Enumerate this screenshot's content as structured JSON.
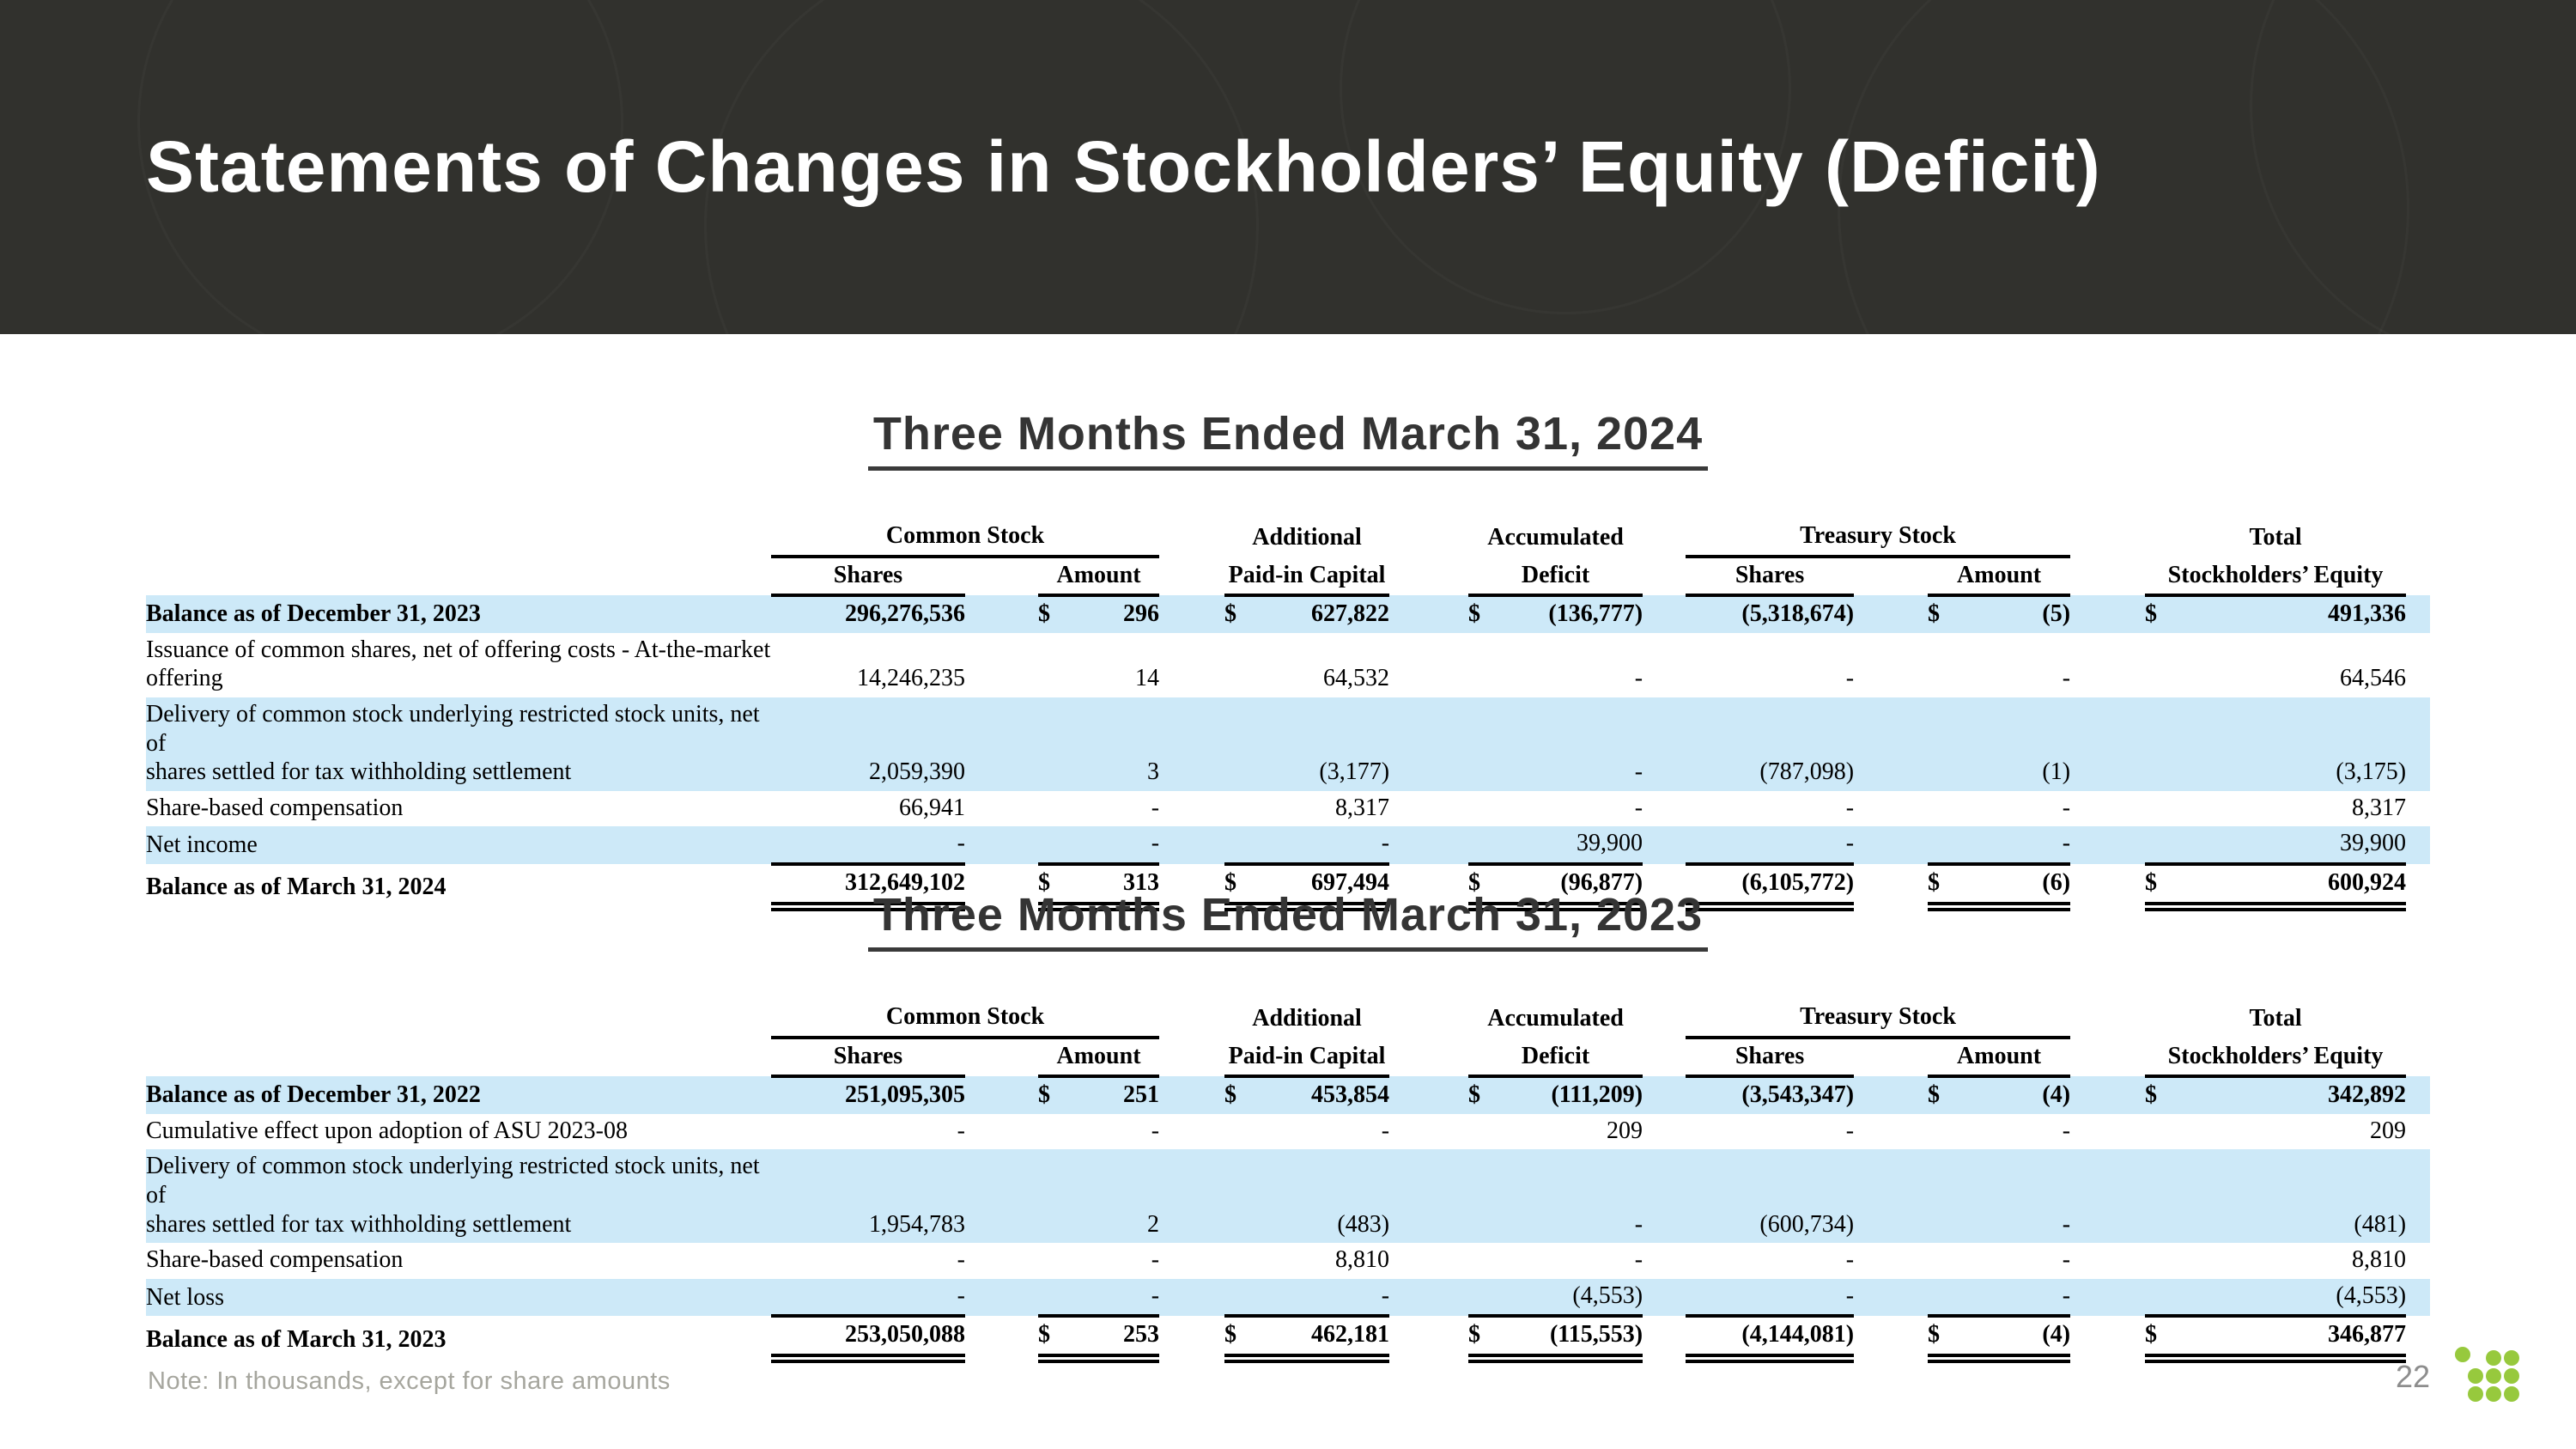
{
  "header": {
    "title": "Statements of Changes in Stockholders’ Equity (Deficit)"
  },
  "footer": {
    "note": "Note: In thousands, except for share amounts",
    "page_number": "22",
    "logo": "nine-green-dots-logo"
  },
  "colors": {
    "band_background": "#31312d",
    "row_highlight": "#cde9f8",
    "logo_green": "#97c93d",
    "heading_text": "#343434",
    "muted_text": "#a6a69e"
  },
  "table_headers": {
    "common_stock": "Common Stock",
    "shares": "Shares",
    "amount": "Amount",
    "additional": "Additional",
    "paid_in_capital": "Paid-in Capital",
    "accumulated": "Accumulated",
    "deficit": "Deficit",
    "treasury_stock": "Treasury Stock",
    "total": "Total",
    "stockholders_equity": "Stockholders’ Equity"
  },
  "tables": [
    {
      "heading": "Three Months Ended March 31, 2024",
      "rows": [
        {
          "label": "Balance as of December 31, 2023",
          "bold": true,
          "highlight": true,
          "total": false,
          "indent": false,
          "values": {
            "cs_shares": {
              "val": "296,276,536"
            },
            "cs_amount": {
              "sym": "$",
              "val": "296"
            },
            "apic": {
              "sym": "$",
              "val": "627,822"
            },
            "deficit": {
              "sym": "$",
              "val": "(136,777)"
            },
            "ts_shares": {
              "val": "(5,318,674)"
            },
            "ts_amount": {
              "sym": "$",
              "val": "(5)"
            },
            "total_equity": {
              "sym": "$",
              "val": "491,336"
            }
          }
        },
        {
          "label": "Issuance of common shares, net of offering costs - At-the-market\noffering",
          "bold": false,
          "highlight": false,
          "total": false,
          "indent": true,
          "values": {
            "cs_shares": {
              "val": "14,246,235"
            },
            "cs_amount": {
              "val": "14"
            },
            "apic": {
              "val": "64,532"
            },
            "deficit": {
              "val": "-"
            },
            "ts_shares": {
              "val": "-"
            },
            "ts_amount": {
              "val": "-"
            },
            "total_equity": {
              "val": "64,546"
            }
          }
        },
        {
          "label": "Delivery of common stock underlying restricted stock units, net of\nshares settled for tax withholding settlement",
          "bold": false,
          "highlight": true,
          "total": false,
          "indent": true,
          "values": {
            "cs_shares": {
              "val": "2,059,390"
            },
            "cs_amount": {
              "val": "3"
            },
            "apic": {
              "val": "(3,177)"
            },
            "deficit": {
              "val": "-"
            },
            "ts_shares": {
              "val": "(787,098)"
            },
            "ts_amount": {
              "val": "(1)"
            },
            "total_equity": {
              "val": "(3,175)"
            }
          }
        },
        {
          "label": "Share-based compensation",
          "bold": false,
          "highlight": false,
          "total": false,
          "indent": true,
          "values": {
            "cs_shares": {
              "val": "66,941"
            },
            "cs_amount": {
              "val": "-"
            },
            "apic": {
              "val": "8,317"
            },
            "deficit": {
              "val": "-"
            },
            "ts_shares": {
              "val": "-"
            },
            "ts_amount": {
              "val": "-"
            },
            "total_equity": {
              "val": "8,317"
            }
          }
        },
        {
          "label": "Net income",
          "bold": false,
          "highlight": true,
          "total": false,
          "indent": true,
          "values": {
            "cs_shares": {
              "val": "-"
            },
            "cs_amount": {
              "val": "-"
            },
            "apic": {
              "val": "-"
            },
            "deficit": {
              "val": "39,900"
            },
            "ts_shares": {
              "val": "-"
            },
            "ts_amount": {
              "val": "-"
            },
            "total_equity": {
              "val": "39,900"
            }
          }
        },
        {
          "label": "Balance as of March 31, 2024",
          "bold": true,
          "highlight": false,
          "total": true,
          "indent": false,
          "values": {
            "cs_shares": {
              "val": "312,649,102"
            },
            "cs_amount": {
              "sym": "$",
              "val": "313"
            },
            "apic": {
              "sym": "$",
              "val": "697,494"
            },
            "deficit": {
              "sym": "$",
              "val": "(96,877)"
            },
            "ts_shares": {
              "val": "(6,105,772)"
            },
            "ts_amount": {
              "sym": "$",
              "val": "(6)"
            },
            "total_equity": {
              "sym": "$",
              "val": "600,924"
            }
          }
        }
      ]
    },
    {
      "heading": "Three Months Ended March 31, 2023",
      "rows": [
        {
          "label": "Balance as of December 31, 2022",
          "bold": true,
          "highlight": true,
          "total": false,
          "indent": false,
          "values": {
            "cs_shares": {
              "val": "251,095,305"
            },
            "cs_amount": {
              "sym": "$",
              "val": "251"
            },
            "apic": {
              "sym": "$",
              "val": "453,854"
            },
            "deficit": {
              "sym": "$",
              "val": "(111,209)"
            },
            "ts_shares": {
              "val": "(3,543,347)"
            },
            "ts_amount": {
              "sym": "$",
              "val": "(4)"
            },
            "total_equity": {
              "sym": "$",
              "val": "342,892"
            }
          }
        },
        {
          "label": "Cumulative effect upon adoption of ASU 2023-08",
          "bold": false,
          "highlight": false,
          "total": false,
          "indent": true,
          "values": {
            "cs_shares": {
              "val": "-"
            },
            "cs_amount": {
              "val": "-"
            },
            "apic": {
              "val": "-"
            },
            "deficit": {
              "val": "209"
            },
            "ts_shares": {
              "val": "-"
            },
            "ts_amount": {
              "val": "-"
            },
            "total_equity": {
              "val": "209"
            }
          }
        },
        {
          "label": "Delivery of common stock underlying restricted stock units, net of\nshares settled for tax withholding settlement",
          "bold": false,
          "highlight": true,
          "total": false,
          "indent": true,
          "values": {
            "cs_shares": {
              "val": "1,954,783"
            },
            "cs_amount": {
              "val": "2"
            },
            "apic": {
              "val": "(483)"
            },
            "deficit": {
              "val": "-"
            },
            "ts_shares": {
              "val": "(600,734)"
            },
            "ts_amount": {
              "val": "-"
            },
            "total_equity": {
              "val": "(481)"
            }
          }
        },
        {
          "label": "Share-based compensation",
          "bold": false,
          "highlight": false,
          "total": false,
          "indent": true,
          "values": {
            "cs_shares": {
              "val": "-"
            },
            "cs_amount": {
              "val": "-"
            },
            "apic": {
              "val": "8,810"
            },
            "deficit": {
              "val": "-"
            },
            "ts_shares": {
              "val": "-"
            },
            "ts_amount": {
              "val": "-"
            },
            "total_equity": {
              "val": "8,810"
            }
          }
        },
        {
          "label": "Net loss",
          "bold": false,
          "highlight": true,
          "total": false,
          "indent": true,
          "values": {
            "cs_shares": {
              "val": "-"
            },
            "cs_amount": {
              "val": "-"
            },
            "apic": {
              "val": "-"
            },
            "deficit": {
              "val": "(4,553)"
            },
            "ts_shares": {
              "val": "-"
            },
            "ts_amount": {
              "val": "-"
            },
            "total_equity": {
              "val": "(4,553)"
            }
          }
        },
        {
          "label": "Balance as of March 31, 2023",
          "bold": true,
          "highlight": false,
          "total": true,
          "indent": false,
          "values": {
            "cs_shares": {
              "val": "253,050,088"
            },
            "cs_amount": {
              "sym": "$",
              "val": "253"
            },
            "apic": {
              "sym": "$",
              "val": "462,181"
            },
            "deficit": {
              "sym": "$",
              "val": "(115,553)"
            },
            "ts_shares": {
              "val": "(4,144,081)"
            },
            "ts_amount": {
              "sym": "$",
              "val": "(4)"
            },
            "total_equity": {
              "sym": "$",
              "val": "346,877"
            }
          }
        }
      ]
    }
  ]
}
